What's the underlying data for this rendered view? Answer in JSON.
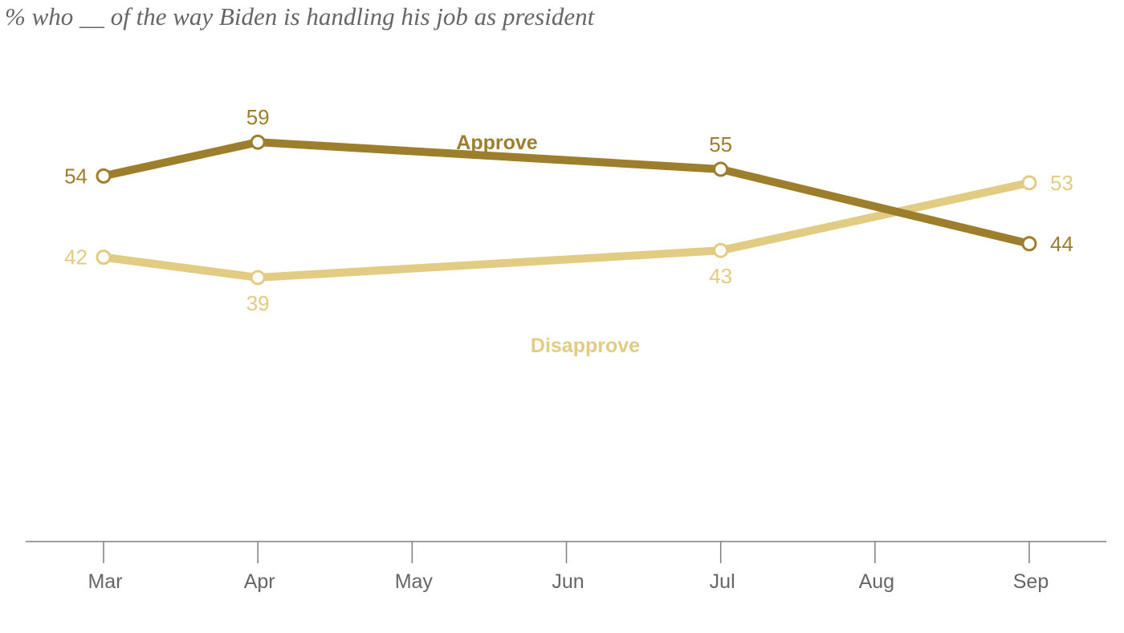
{
  "chart_data": {
    "type": "line",
    "title": "% who __ of the way Biden is handling his job as president",
    "xlabel": "",
    "ylabel": "",
    "categories": [
      "Mar",
      "Apr",
      "May",
      "Jun",
      "Jul",
      "Aug",
      "Sep"
    ],
    "ylim": [
      0,
      80
    ],
    "series": [
      {
        "name": "Approve",
        "color": "#9c7e2c",
        "points": [
          {
            "x": "Mar",
            "y": 54,
            "label": "54",
            "label_pos": "left"
          },
          {
            "x": "Apr",
            "y": 59,
            "label": "59",
            "label_pos": "above"
          },
          {
            "x": "Jul",
            "y": 55,
            "label": "55",
            "label_pos": "above"
          },
          {
            "x": "Sep",
            "y": 44,
            "label": "44",
            "label_pos": "right"
          }
        ]
      },
      {
        "name": "Disapprove",
        "color": "#e2cb82",
        "points": [
          {
            "x": "Mar",
            "y": 42,
            "label": "42",
            "label_pos": "left"
          },
          {
            "x": "Apr",
            "y": 39,
            "label": "39",
            "label_pos": "below"
          },
          {
            "x": "Jul",
            "y": 43,
            "label": "43",
            "label_pos": "below"
          },
          {
            "x": "Sep",
            "y": 53,
            "label": "53",
            "label_pos": "right"
          }
        ]
      }
    ],
    "grid": false,
    "legend": "inline"
  }
}
